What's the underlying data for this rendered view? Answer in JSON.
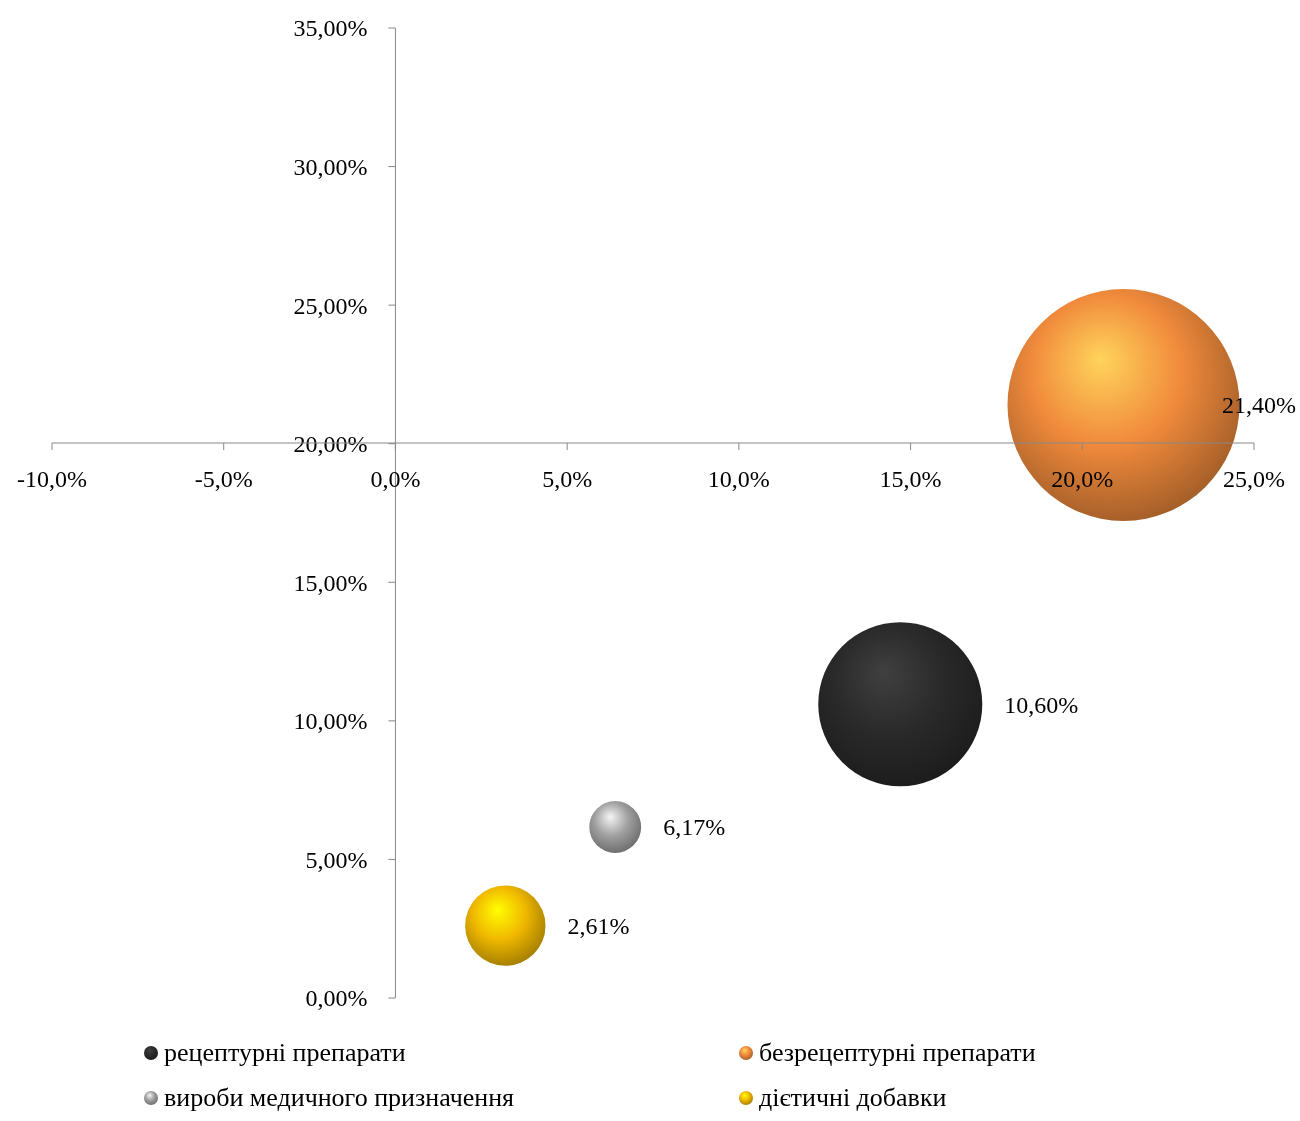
{
  "chart_data": {
    "type": "bubble",
    "xlim": [
      -10,
      25
    ],
    "xticks": [
      {
        "value": -10,
        "label": "-10,0%"
      },
      {
        "value": -5,
        "label": "-5,0%"
      },
      {
        "value": 0,
        "label": "0,0%"
      },
      {
        "value": 5,
        "label": "5,0%"
      },
      {
        "value": 10,
        "label": "10,0%"
      },
      {
        "value": 15,
        "label": "15,0%"
      },
      {
        "value": 20,
        "label": "20,0%"
      },
      {
        "value": 25,
        "label": "25,0%"
      }
    ],
    "ylim": [
      0,
      35
    ],
    "yticks": [
      {
        "value": 0,
        "label": "0,00%"
      },
      {
        "value": 5,
        "label": "5,00%"
      },
      {
        "value": 10,
        "label": "10,00%"
      },
      {
        "value": 15,
        "label": "15,00%"
      },
      {
        "value": 20,
        "label": "20,00%"
      },
      {
        "value": 25,
        "label": "25,00%"
      },
      {
        "value": 30,
        "label": "30,00%"
      },
      {
        "value": 35,
        "label": "35,00%"
      }
    ],
    "series": [
      {
        "name": "рецептурні препарати",
        "color": "#2a2a2a",
        "x": [
          14.7
        ],
        "values": [
          10.6
        ],
        "sizes": [
          0.5
        ],
        "value_labels": [
          "10,60%"
        ]
      },
      {
        "name": "безрецептурні препарати",
        "color": "#f08a3c",
        "x": [
          21.2
        ],
        "values": [
          21.4
        ],
        "sizes": [
          1
        ],
        "value_labels": [
          "21,40%"
        ]
      },
      {
        "name": "вироби медичного призначення",
        "color": "#a0a0a0",
        "x": [
          6.4
        ],
        "values": [
          6.17
        ],
        "sizes": [
          0.05
        ],
        "value_labels": [
          "6,17%"
        ]
      },
      {
        "name": "дієтичні добавки",
        "color": "#f0b800",
        "x": [
          3.2
        ],
        "values": [
          2.61
        ],
        "sizes": [
          0.12
        ],
        "value_labels": [
          "2,61%"
        ]
      }
    ],
    "legend": "bottom",
    "grid": false
  }
}
